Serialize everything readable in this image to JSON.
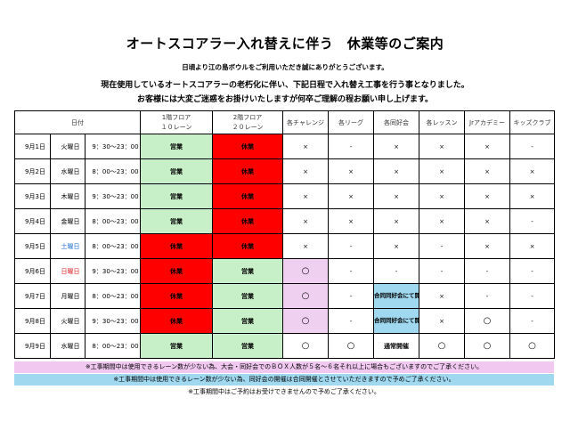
{
  "title": "オートスコアラー入れ替えに伴う　休業等のご案内",
  "greeting": "日頃より江の島ボウルをご利用いただき誠にありがとうございます。",
  "message_line1": "現在使用しているオートスコアラーの老朽化に伴い、下記日程で入れ替え工事を行う事となりました。",
  "message_line2": "お客様には大変ご迷惑をお掛けいたしますが何卒ご理解の程お願い申し上げます。",
  "headers": {
    "date": "日付",
    "floor1_line1": "1階フロア",
    "floor1_line2": "１０レーン",
    "floor2_line1": "2階フロア",
    "floor2_line2": "２０レーン",
    "challenge": "各チャレンジ",
    "league": "各リーグ",
    "club": "各同好会",
    "lesson": "各レッスン",
    "academy": "Jrアカデミー",
    "kids": "キッズクラブ"
  },
  "rows": [
    {
      "date": "9月1日",
      "day": "火曜日",
      "hours": "9：30～23：00",
      "f1": "営業",
      "f2": "休業",
      "challenge": "×",
      "league": "-",
      "club": "×",
      "lesson": "×",
      "academy": "×",
      "kids": "-"
    },
    {
      "date": "9月2日",
      "day": "水曜日",
      "hours": "8：00～23：00",
      "f1": "営業",
      "f2": "休業",
      "challenge": "×",
      "league": "×",
      "club": "×",
      "lesson": "×",
      "academy": "×",
      "kids": "×"
    },
    {
      "date": "9月3日",
      "day": "木曜日",
      "hours": "9：30～23：00",
      "f1": "営業",
      "f2": "休業",
      "challenge": "×",
      "league": "×",
      "club": "×",
      "lesson": "×",
      "academy": "×",
      "kids": "×"
    },
    {
      "date": "9月4日",
      "day": "金曜日",
      "hours": "8：00～23：00",
      "f1": "営業",
      "f2": "休業",
      "challenge": "×",
      "league": "×",
      "club": "×",
      "lesson": "×",
      "academy": "×",
      "kids": "-"
    },
    {
      "date": "9月5日",
      "day": "土曜日",
      "hours": "8：00～23：00",
      "f1": "休業",
      "f2": "休業",
      "challenge": "×",
      "league": "-",
      "club": "×",
      "lesson": "-",
      "academy": "×",
      "kids": "×"
    },
    {
      "date": "9月6日",
      "day": "日曜日",
      "hours": "9：30～23：00",
      "f1": "休業",
      "f2": "営業",
      "challenge": "○",
      "league": "-",
      "club": "-",
      "lesson": "-",
      "academy": "-",
      "kids": "-"
    },
    {
      "date": "9月7日",
      "day": "月曜日",
      "hours": "8：00～23：00",
      "f1": "休業",
      "f2": "営業",
      "challenge": "○",
      "league": "-",
      "club": "合同同好会にて開催",
      "lesson": "×",
      "academy": "-",
      "kids": "-"
    },
    {
      "date": "9月8日",
      "day": "火曜日",
      "hours": "9：30～23：00",
      "f1": "休業",
      "f2": "営業",
      "challenge": "○",
      "league": "-",
      "club": "合同同好会にて開催",
      "lesson": "×",
      "academy": "○",
      "kids": "-"
    },
    {
      "date": "9月9日",
      "day": "水曜日",
      "hours": "8：00～23：00",
      "f1": "営業",
      "f2": "営業",
      "challenge": "○",
      "league": "○",
      "club": "通常開催",
      "lesson": "○",
      "academy": "○",
      "kids": "○"
    }
  ],
  "notes": [
    "※工事期間中は使用できるレーン数が少ない為、大会・同好会でのＢＯＸ人数が５名～６名それ以上に場合もございますのでご了承ください。",
    "※工事期間中は使用できるレーン数が少ない為、同好会の開催は合同開催とさせていただきますので予めご了承ください。",
    "※工事期間中はご予約はお受けできませんので予めご了承ください。"
  ],
  "colors": {
    "open_green": "#c8f0c8",
    "closed_red": "#ff0000",
    "pink": "#f0d0f0",
    "blue": "#9fd8ef",
    "saturday": "#1e6fd0",
    "sunday": "#e02020"
  }
}
